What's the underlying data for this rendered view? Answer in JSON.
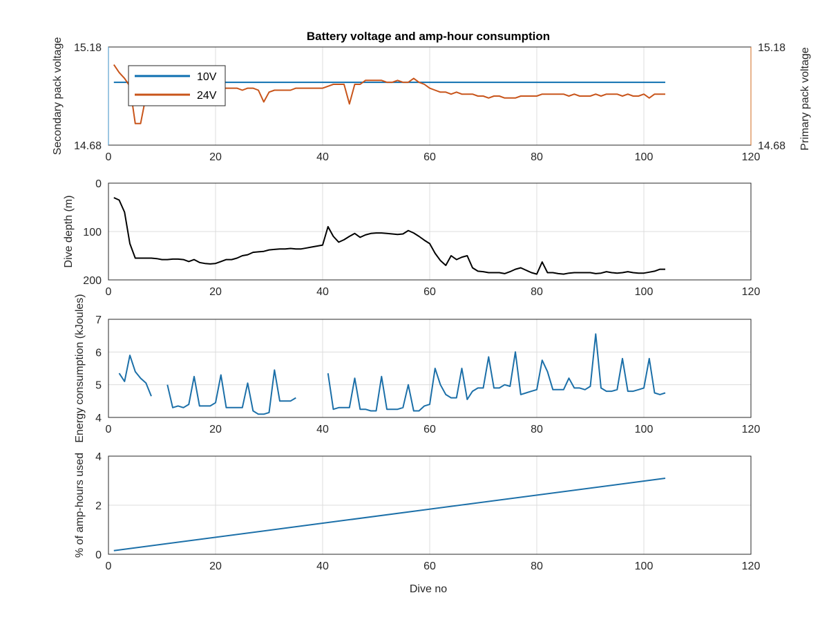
{
  "chart_data": [
    {
      "type": "line",
      "title": "Battery voltage and amp-hour consumption",
      "xlabel": "",
      "ylabel": "Secondary pack voltage",
      "ylabel_right": "Primary pack voltage",
      "xlim": [
        0,
        120
      ],
      "ylim": [
        14.68,
        15.18
      ],
      "ylim_right": [
        14.68,
        15.18
      ],
      "xticks": [
        "0",
        "20",
        "40",
        "60",
        "80",
        "100",
        "120"
      ],
      "yticks": [
        "14.68",
        "15.18"
      ],
      "yticks_right": [
        "14.68",
        "15.18"
      ],
      "grid": true,
      "legend": "top-left",
      "colors": {
        "left_axis": "#3a8ec4",
        "right_axis": "#d2691e"
      },
      "series": [
        {
          "name": "10V",
          "axis": "left",
          "color": "#0d6fb0",
          "x": [
            1,
            104
          ],
          "y": [
            15.0,
            15.0
          ]
        },
        {
          "name": "24V",
          "axis": "right",
          "color": "#c8541a",
          "x": [
            1,
            2,
            3,
            4,
            5,
            6,
            7,
            8,
            9,
            10,
            11,
            12,
            13,
            14,
            15,
            16,
            17,
            18,
            19,
            20,
            21,
            22,
            23,
            24,
            25,
            26,
            27,
            28,
            29,
            30,
            31,
            32,
            33,
            34,
            35,
            36,
            37,
            38,
            39,
            40,
            41,
            42,
            43,
            44,
            45,
            46,
            47,
            48,
            49,
            50,
            51,
            52,
            53,
            54,
            55,
            56,
            57,
            58,
            59,
            60,
            61,
            62,
            63,
            64,
            65,
            66,
            67,
            68,
            69,
            70,
            71,
            72,
            73,
            74,
            75,
            76,
            77,
            78,
            79,
            80,
            81,
            82,
            83,
            84,
            85,
            86,
            87,
            88,
            89,
            90,
            91,
            92,
            93,
            94,
            95,
            96,
            97,
            98,
            99,
            100,
            101,
            102,
            103,
            104
          ],
          "y": [
            15.09,
            15.05,
            15.02,
            14.98,
            14.79,
            14.79,
            14.93,
            14.96,
            14.97,
            14.96,
            14.97,
            14.97,
            14.96,
            14.97,
            14.97,
            14.96,
            14.97,
            14.97,
            14.96,
            14.96,
            14.97,
            14.97,
            14.97,
            14.97,
            14.96,
            14.97,
            14.97,
            14.96,
            14.9,
            14.95,
            14.96,
            14.96,
            14.96,
            14.96,
            14.97,
            14.97,
            14.97,
            14.97,
            14.97,
            14.97,
            14.98,
            14.99,
            14.99,
            14.99,
            14.89,
            14.99,
            14.99,
            15.01,
            15.01,
            15.01,
            15.01,
            15.0,
            15.0,
            15.01,
            15.0,
            15.0,
            15.02,
            15.0,
            14.99,
            14.97,
            14.96,
            14.95,
            14.95,
            14.94,
            14.95,
            14.94,
            14.94,
            14.94,
            14.93,
            14.93,
            14.92,
            14.93,
            14.93,
            14.92,
            14.92,
            14.92,
            14.93,
            14.93,
            14.93,
            14.93,
            14.94,
            14.94,
            14.94,
            14.94,
            14.94,
            14.93,
            14.94,
            14.93,
            14.93,
            14.93,
            14.94,
            14.93,
            14.94,
            14.94,
            14.94,
            14.93,
            14.94,
            14.93,
            14.93,
            14.94,
            14.92,
            14.94,
            14.94,
            14.94
          ]
        }
      ]
    },
    {
      "type": "line",
      "ylabel": "Dive depth (m)",
      "xlim": [
        0,
        120
      ],
      "ylim": [
        0,
        200
      ],
      "y_reversed": true,
      "xticks": [
        "0",
        "20",
        "40",
        "60",
        "80",
        "100",
        "120"
      ],
      "yticks": [
        "0",
        "100",
        "200"
      ],
      "grid": true,
      "series": [
        {
          "color": "#000000",
          "x": [
            1,
            2,
            3,
            4,
            5,
            6,
            7,
            8,
            9,
            10,
            11,
            12,
            13,
            14,
            15,
            16,
            17,
            18,
            19,
            20,
            21,
            22,
            23,
            24,
            25,
            26,
            27,
            28,
            29,
            30,
            31,
            32,
            33,
            34,
            35,
            36,
            37,
            38,
            39,
            40,
            41,
            42,
            43,
            44,
            45,
            46,
            47,
            48,
            49,
            50,
            51,
            52,
            53,
            54,
            55,
            56,
            57,
            58,
            59,
            60,
            61,
            62,
            63,
            64,
            65,
            66,
            67,
            68,
            69,
            70,
            71,
            72,
            73,
            74,
            75,
            76,
            77,
            78,
            79,
            80,
            81,
            82,
            83,
            84,
            85,
            86,
            87,
            88,
            89,
            90,
            91,
            92,
            93,
            94,
            95,
            96,
            97,
            98,
            99,
            100,
            101,
            102,
            103,
            104
          ],
          "y": [
            30,
            35,
            60,
            125,
            155,
            155,
            155,
            155,
            156,
            158,
            158,
            157,
            157,
            158,
            162,
            158,
            164,
            166,
            167,
            166,
            162,
            158,
            158,
            155,
            150,
            148,
            143,
            142,
            141,
            138,
            137,
            136,
            136,
            135,
            136,
            136,
            134,
            132,
            130,
            128,
            90,
            110,
            122,
            117,
            110,
            104,
            112,
            107,
            104,
            103,
            103,
            104,
            105,
            106,
            105,
            98,
            103,
            110,
            118,
            125,
            145,
            160,
            170,
            150,
            158,
            153,
            150,
            175,
            182,
            183,
            185,
            185,
            185,
            187,
            183,
            178,
            175,
            180,
            185,
            188,
            163,
            185,
            185,
            187,
            188,
            186,
            185,
            185,
            185,
            185,
            187,
            186,
            183,
            185,
            186,
            185,
            183,
            185,
            186,
            186,
            184,
            182,
            178,
            178
          ]
        }
      ]
    },
    {
      "type": "line",
      "ylabel": "Energy consumption (kJoules)",
      "xlim": [
        0,
        120
      ],
      "ylim": [
        4,
        7
      ],
      "xticks": [
        "0",
        "20",
        "40",
        "60",
        "80",
        "100",
        "120"
      ],
      "yticks": [
        "4",
        "5",
        "6",
        "7"
      ],
      "grid": true,
      "series": [
        {
          "color": "#1b6fa8",
          "x": [
            2,
            3,
            4,
            5,
            6,
            7,
            8,
            null,
            11,
            12,
            13,
            14,
            15,
            16,
            17,
            18,
            19,
            20,
            21,
            22,
            23,
            24,
            25,
            26,
            27,
            28,
            29,
            30,
            31,
            32,
            33,
            34,
            35,
            null,
            41,
            42,
            43,
            44,
            45,
            46,
            47,
            48,
            49,
            50,
            51,
            52,
            53,
            54,
            55,
            56,
            57,
            58,
            59,
            60,
            61,
            62,
            63,
            64,
            65,
            66,
            67,
            68,
            69,
            70,
            71,
            72,
            73,
            74,
            75,
            76,
            77,
            78,
            79,
            80,
            81,
            82,
            83,
            84,
            85,
            86,
            87,
            88,
            89,
            90,
            91,
            92,
            93,
            94,
            95,
            96,
            97,
            98,
            99,
            100,
            101,
            102,
            103,
            104
          ],
          "y": [
            5.35,
            5.1,
            5.9,
            5.4,
            5.2,
            5.05,
            4.65,
            null,
            5.0,
            4.3,
            4.35,
            4.3,
            4.4,
            5.25,
            4.35,
            4.35,
            4.35,
            4.45,
            5.3,
            4.3,
            4.3,
            4.3,
            4.3,
            5.05,
            4.2,
            4.1,
            4.1,
            4.15,
            5.45,
            4.5,
            4.5,
            4.5,
            4.6,
            null,
            5.35,
            4.25,
            4.3,
            4.3,
            4.3,
            5.2,
            4.25,
            4.25,
            4.2,
            4.2,
            5.25,
            4.25,
            4.25,
            4.25,
            4.3,
            5.0,
            4.2,
            4.2,
            4.35,
            4.4,
            5.5,
            5.0,
            4.7,
            4.6,
            4.6,
            5.5,
            4.55,
            4.8,
            4.9,
            4.9,
            5.85,
            4.9,
            4.9,
            5.0,
            4.95,
            6.0,
            4.7,
            4.75,
            4.8,
            4.85,
            5.75,
            5.4,
            4.85,
            4.85,
            4.85,
            5.2,
            4.9,
            4.9,
            4.85,
            4.95,
            6.55,
            4.9,
            4.8,
            4.8,
            4.85,
            5.8,
            4.8,
            4.8,
            4.85,
            4.9,
            5.8,
            4.75,
            4.7,
            4.75
          ]
        }
      ]
    },
    {
      "type": "line",
      "ylabel": "% of amp-hours used",
      "xlabel": "Dive no",
      "xlim": [
        0,
        120
      ],
      "ylim": [
        0,
        4
      ],
      "xticks": [
        "0",
        "20",
        "40",
        "60",
        "80",
        "100",
        "120"
      ],
      "yticks": [
        "0",
        "2",
        "4"
      ],
      "grid": true,
      "series": [
        {
          "color": "#1b6fa8",
          "x": [
            1,
            104
          ],
          "y": [
            0.15,
            3.1
          ]
        }
      ]
    }
  ]
}
